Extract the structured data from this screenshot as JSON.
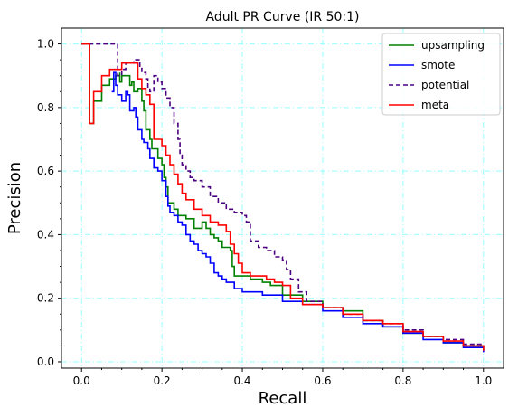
{
  "chart_data": {
    "type": "line",
    "title": "Adult PR Curve (IR 50:1)",
    "xlabel": "Recall",
    "ylabel": "Precision",
    "xlim": [
      -0.05,
      1.05
    ],
    "ylim": [
      -0.02,
      1.05
    ],
    "xticks": [
      0.0,
      0.2,
      0.4,
      0.6,
      0.8,
      1.0
    ],
    "xtick_labels": [
      "0.0",
      "0.2",
      "0.4",
      "0.6",
      "0.8",
      "1.0"
    ],
    "yticks": [
      0.0,
      0.2,
      0.4,
      0.6,
      0.8,
      1.0
    ],
    "ytick_labels": [
      "0.0",
      "0.2",
      "0.4",
      "0.6",
      "0.8",
      "1.0"
    ],
    "grid": true,
    "legend_position": "top-right",
    "series": [
      {
        "name": "upsampling",
        "color": "#008000",
        "dash": "solid",
        "points": [
          [
            0.0,
            1.0
          ],
          [
            0.02,
            1.0
          ],
          [
            0.02,
            0.75
          ],
          [
            0.03,
            0.82
          ],
          [
            0.05,
            0.87
          ],
          [
            0.07,
            0.89
          ],
          [
            0.085,
            0.9
          ],
          [
            0.095,
            0.91
          ],
          [
            0.095,
            0.88
          ],
          [
            0.1,
            0.9
          ],
          [
            0.11,
            0.9
          ],
          [
            0.12,
            0.87
          ],
          [
            0.125,
            0.88
          ],
          [
            0.13,
            0.85
          ],
          [
            0.14,
            0.86
          ],
          [
            0.15,
            0.82
          ],
          [
            0.155,
            0.79
          ],
          [
            0.16,
            0.73
          ],
          [
            0.17,
            0.7
          ],
          [
            0.175,
            0.67
          ],
          [
            0.19,
            0.64
          ],
          [
            0.2,
            0.62
          ],
          [
            0.205,
            0.58
          ],
          [
            0.21,
            0.55
          ],
          [
            0.215,
            0.5
          ],
          [
            0.22,
            0.5
          ],
          [
            0.23,
            0.48
          ],
          [
            0.24,
            0.46
          ],
          [
            0.26,
            0.45
          ],
          [
            0.28,
            0.42
          ],
          [
            0.3,
            0.44
          ],
          [
            0.31,
            0.42
          ],
          [
            0.32,
            0.4
          ],
          [
            0.33,
            0.39
          ],
          [
            0.34,
            0.38
          ],
          [
            0.35,
            0.36
          ],
          [
            0.36,
            0.36
          ],
          [
            0.37,
            0.35
          ],
          [
            0.375,
            0.3
          ],
          [
            0.38,
            0.27
          ],
          [
            0.4,
            0.27
          ],
          [
            0.42,
            0.26
          ],
          [
            0.45,
            0.25
          ],
          [
            0.47,
            0.24
          ],
          [
            0.5,
            0.21
          ],
          [
            0.55,
            0.19
          ],
          [
            0.6,
            0.17
          ],
          [
            0.65,
            0.16
          ],
          [
            0.7,
            0.13
          ],
          [
            0.75,
            0.11
          ],
          [
            0.8,
            0.09
          ],
          [
            0.85,
            0.08
          ],
          [
            0.9,
            0.06
          ],
          [
            0.95,
            0.05
          ],
          [
            1.0,
            0.035
          ]
        ]
      },
      {
        "name": "smote",
        "color": "#0000ff",
        "dash": "solid",
        "points": [
          [
            0.075,
            0.85
          ],
          [
            0.08,
            0.91
          ],
          [
            0.085,
            0.87
          ],
          [
            0.09,
            0.84
          ],
          [
            0.1,
            0.82
          ],
          [
            0.11,
            0.85
          ],
          [
            0.115,
            0.84
          ],
          [
            0.12,
            0.79
          ],
          [
            0.13,
            0.8
          ],
          [
            0.135,
            0.77
          ],
          [
            0.14,
            0.73
          ],
          [
            0.15,
            0.7
          ],
          [
            0.155,
            0.69
          ],
          [
            0.165,
            0.67
          ],
          [
            0.17,
            0.64
          ],
          [
            0.18,
            0.61
          ],
          [
            0.19,
            0.6
          ],
          [
            0.2,
            0.57
          ],
          [
            0.21,
            0.52
          ],
          [
            0.215,
            0.49
          ],
          [
            0.22,
            0.47
          ],
          [
            0.23,
            0.46
          ],
          [
            0.24,
            0.44
          ],
          [
            0.25,
            0.43
          ],
          [
            0.26,
            0.4
          ],
          [
            0.27,
            0.38
          ],
          [
            0.28,
            0.37
          ],
          [
            0.29,
            0.35
          ],
          [
            0.3,
            0.34
          ],
          [
            0.31,
            0.33
          ],
          [
            0.32,
            0.31
          ],
          [
            0.33,
            0.28
          ],
          [
            0.34,
            0.27
          ],
          [
            0.35,
            0.26
          ],
          [
            0.36,
            0.25
          ],
          [
            0.38,
            0.23
          ],
          [
            0.4,
            0.22
          ],
          [
            0.45,
            0.21
          ],
          [
            0.5,
            0.19
          ],
          [
            0.55,
            0.18
          ],
          [
            0.6,
            0.16
          ],
          [
            0.65,
            0.14
          ],
          [
            0.7,
            0.12
          ],
          [
            0.75,
            0.11
          ],
          [
            0.8,
            0.09
          ],
          [
            0.85,
            0.07
          ],
          [
            0.9,
            0.06
          ],
          [
            0.95,
            0.045
          ],
          [
            1.0,
            0.03
          ]
        ]
      },
      {
        "name": "potential",
        "color": "#4b0082",
        "dash": "dashed",
        "points": [
          [
            0.0,
            1.0
          ],
          [
            0.09,
            1.0
          ],
          [
            0.09,
            0.9
          ],
          [
            0.1,
            0.92
          ],
          [
            0.11,
            0.94
          ],
          [
            0.13,
            0.95
          ],
          [
            0.14,
            0.95
          ],
          [
            0.145,
            0.93
          ],
          [
            0.15,
            0.91
          ],
          [
            0.16,
            0.89
          ],
          [
            0.165,
            0.86
          ],
          [
            0.17,
            0.85
          ],
          [
            0.18,
            0.9
          ],
          [
            0.19,
            0.88
          ],
          [
            0.2,
            0.86
          ],
          [
            0.21,
            0.83
          ],
          [
            0.22,
            0.8
          ],
          [
            0.23,
            0.75
          ],
          [
            0.24,
            0.7
          ],
          [
            0.245,
            0.65
          ],
          [
            0.25,
            0.62
          ],
          [
            0.26,
            0.6
          ],
          [
            0.27,
            0.58
          ],
          [
            0.28,
            0.57
          ],
          [
            0.3,
            0.55
          ],
          [
            0.32,
            0.52
          ],
          [
            0.34,
            0.5
          ],
          [
            0.36,
            0.48
          ],
          [
            0.38,
            0.47
          ],
          [
            0.4,
            0.46
          ],
          [
            0.41,
            0.44
          ],
          [
            0.42,
            0.38
          ],
          [
            0.44,
            0.36
          ],
          [
            0.46,
            0.35
          ],
          [
            0.48,
            0.33
          ],
          [
            0.5,
            0.32
          ],
          [
            0.51,
            0.29
          ],
          [
            0.52,
            0.26
          ],
          [
            0.54,
            0.22
          ],
          [
            0.56,
            0.19
          ],
          [
            0.6,
            0.17
          ],
          [
            0.65,
            0.15
          ],
          [
            0.7,
            0.13
          ],
          [
            0.75,
            0.12
          ],
          [
            0.8,
            0.1
          ],
          [
            0.85,
            0.08
          ],
          [
            0.9,
            0.07
          ],
          [
            0.95,
            0.055
          ],
          [
            1.0,
            0.035
          ]
        ]
      },
      {
        "name": "meta",
        "color": "#ff0000",
        "dash": "solid",
        "points": [
          [
            0.0,
            1.0
          ],
          [
            0.02,
            1.0
          ],
          [
            0.02,
            0.75
          ],
          [
            0.03,
            0.85
          ],
          [
            0.05,
            0.9
          ],
          [
            0.07,
            0.92
          ],
          [
            0.1,
            0.94
          ],
          [
            0.13,
            0.94
          ],
          [
            0.14,
            0.89
          ],
          [
            0.15,
            0.86
          ],
          [
            0.16,
            0.84
          ],
          [
            0.17,
            0.81
          ],
          [
            0.18,
            0.7
          ],
          [
            0.19,
            0.7
          ],
          [
            0.2,
            0.68
          ],
          [
            0.21,
            0.65
          ],
          [
            0.22,
            0.62
          ],
          [
            0.23,
            0.59
          ],
          [
            0.24,
            0.56
          ],
          [
            0.25,
            0.53
          ],
          [
            0.26,
            0.51
          ],
          [
            0.28,
            0.48
          ],
          [
            0.3,
            0.46
          ],
          [
            0.32,
            0.44
          ],
          [
            0.34,
            0.43
          ],
          [
            0.36,
            0.41
          ],
          [
            0.37,
            0.37
          ],
          [
            0.38,
            0.34
          ],
          [
            0.39,
            0.31
          ],
          [
            0.4,
            0.28
          ],
          [
            0.42,
            0.27
          ],
          [
            0.44,
            0.27
          ],
          [
            0.46,
            0.26
          ],
          [
            0.48,
            0.25
          ],
          [
            0.5,
            0.24
          ],
          [
            0.52,
            0.2
          ],
          [
            0.55,
            0.18
          ],
          [
            0.6,
            0.17
          ],
          [
            0.65,
            0.15
          ],
          [
            0.7,
            0.13
          ],
          [
            0.75,
            0.12
          ],
          [
            0.8,
            0.095
          ],
          [
            0.85,
            0.08
          ],
          [
            0.9,
            0.065
          ],
          [
            0.95,
            0.05
          ],
          [
            1.0,
            0.035
          ]
        ]
      }
    ]
  }
}
